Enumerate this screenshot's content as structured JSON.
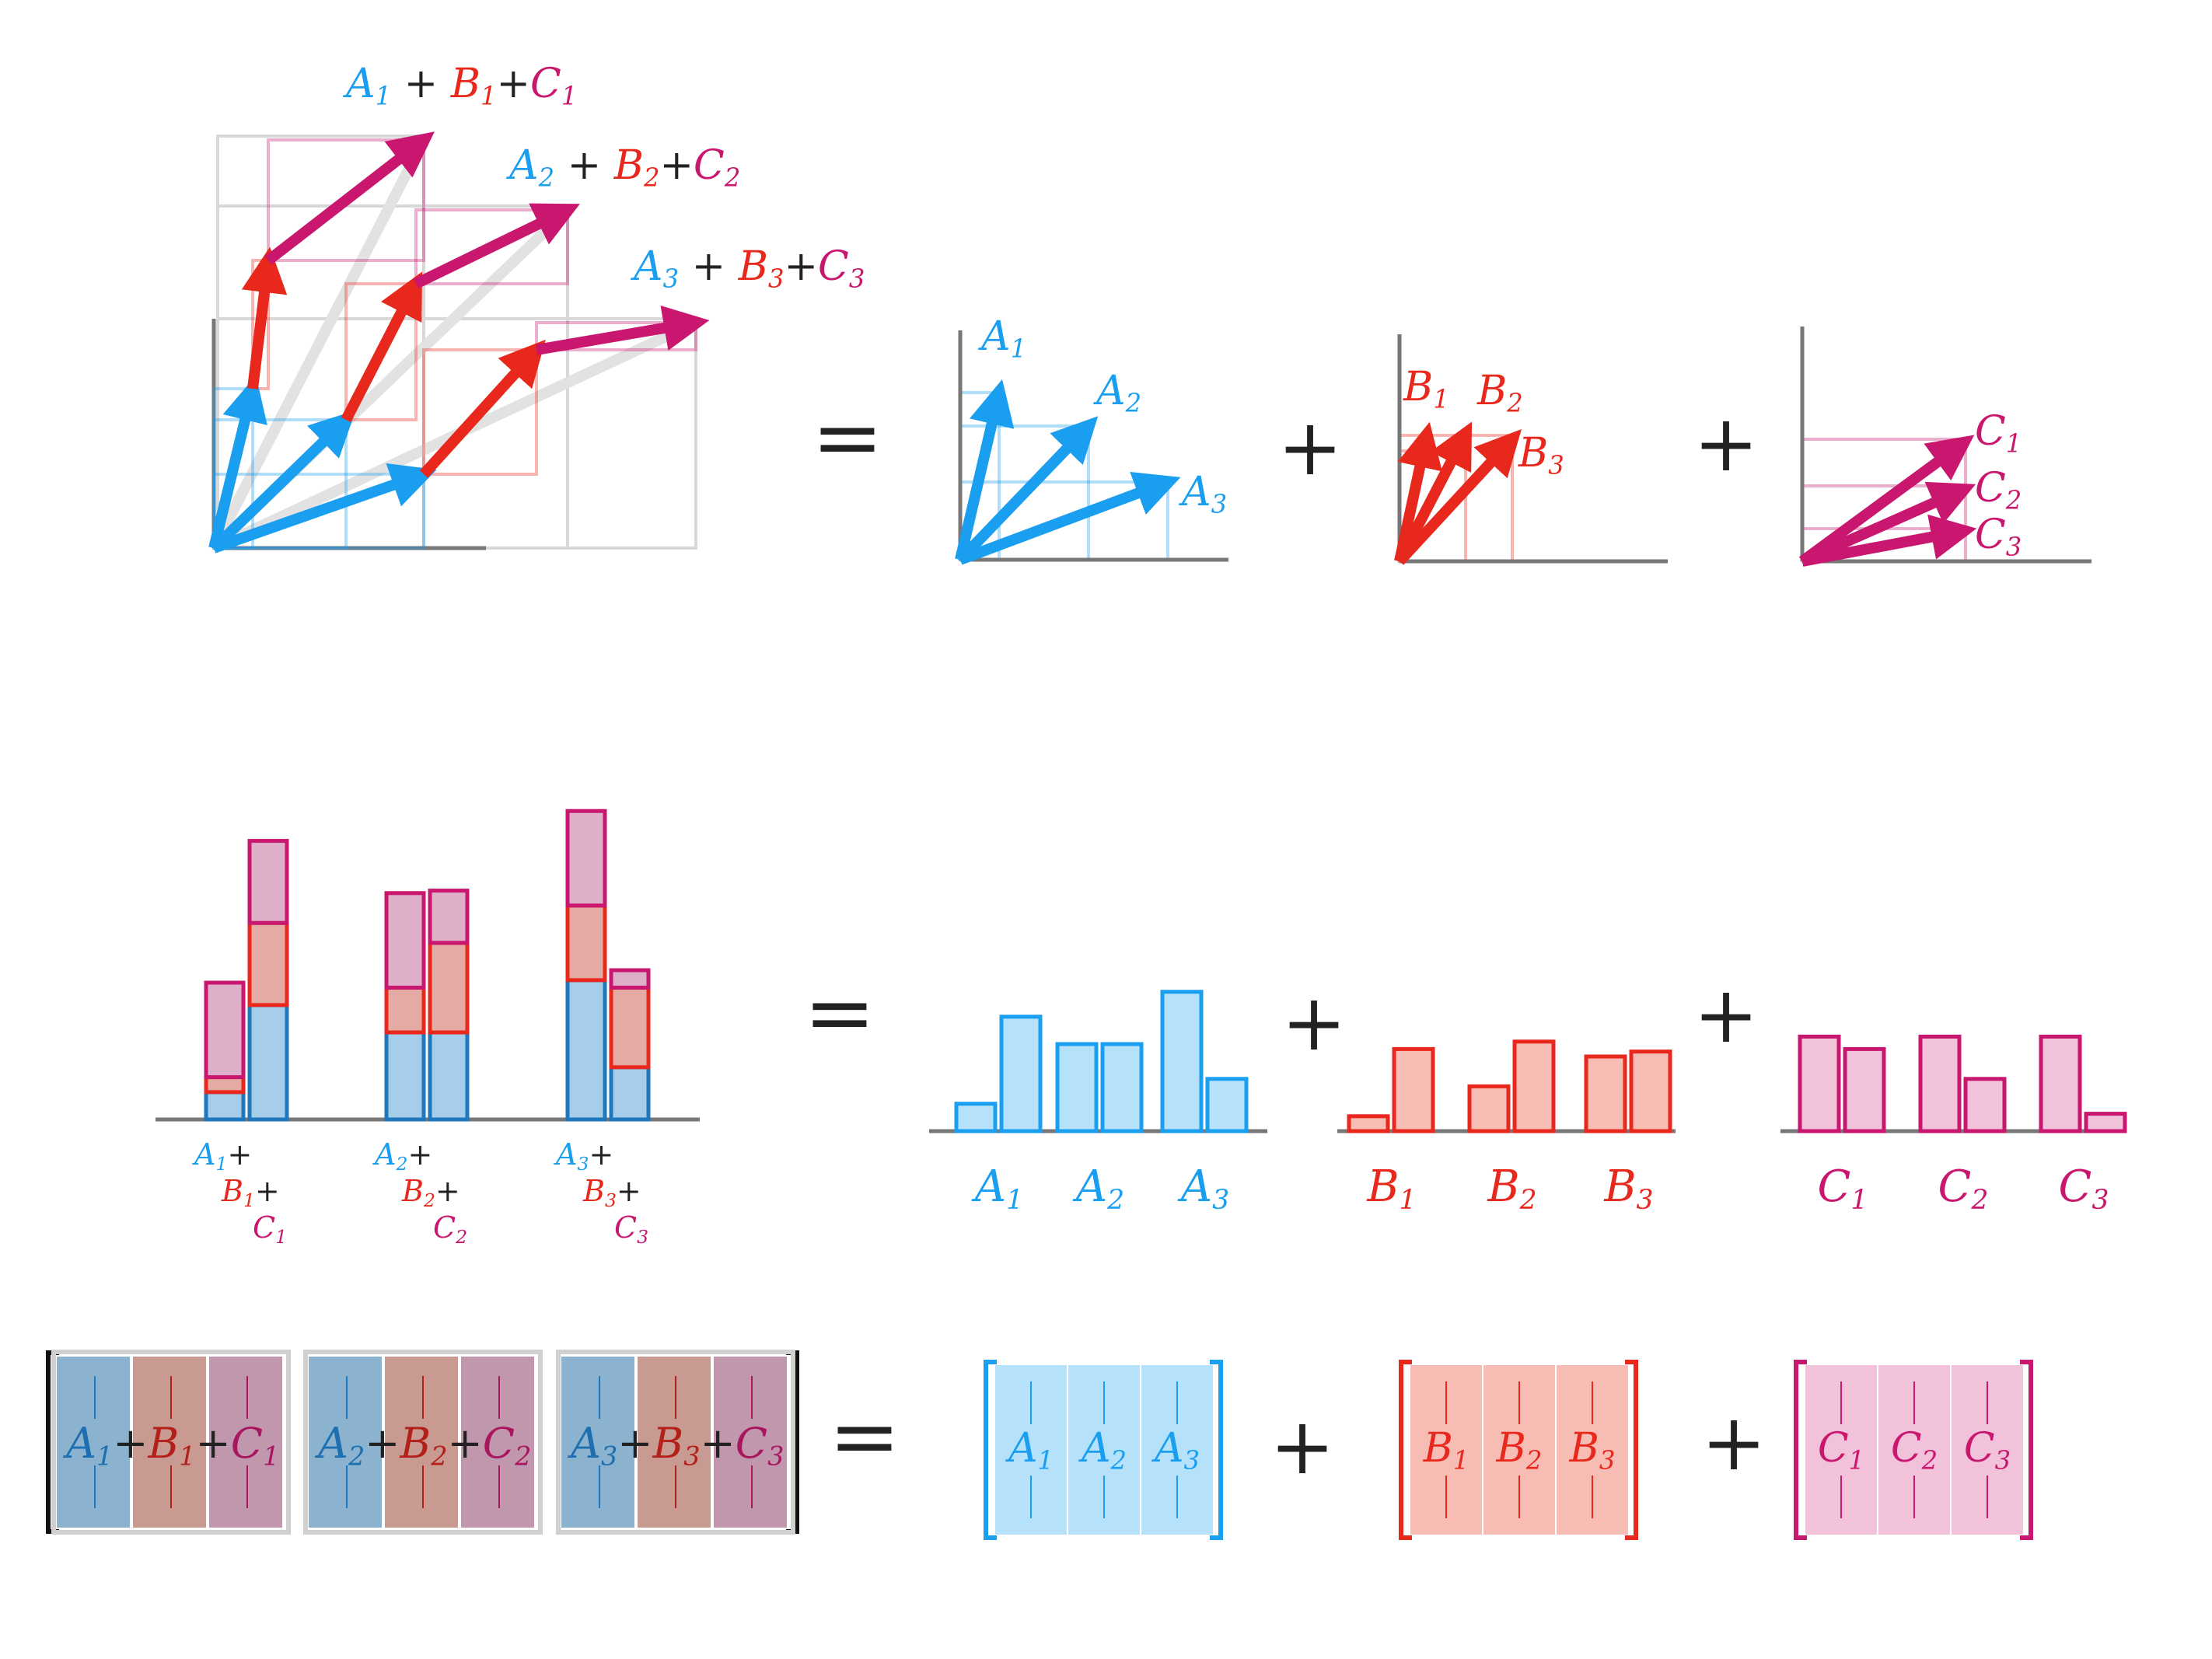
{
  "colors": {
    "a": "#1a9ff0",
    "a_fill": "#b6e1fb",
    "a_dark": "#1f78bd",
    "b": "#e8281c",
    "b_fill": "#f7bdb5",
    "c": "#c9176f",
    "c_fill": "#f2c2da",
    "axis": "#777777",
    "ink": "#222222"
  },
  "operators": {
    "equals": "=",
    "plus": "+"
  },
  "vector_labels": {
    "sum": [
      {
        "a": "A",
        "an": "1",
        "b": "B",
        "bn": "1",
        "c": "C",
        "cn": "1"
      },
      {
        "a": "A",
        "an": "2",
        "b": "B",
        "bn": "2",
        "c": "C",
        "cn": "2"
      },
      {
        "a": "A",
        "an": "3",
        "b": "B",
        "bn": "3",
        "c": "C",
        "cn": "3"
      }
    ],
    "a": [
      {
        "n": "A",
        "s": "1"
      },
      {
        "n": "A",
        "s": "2"
      },
      {
        "n": "A",
        "s": "3"
      }
    ],
    "b": [
      {
        "n": "B",
        "s": "1"
      },
      {
        "n": "B",
        "s": "2"
      },
      {
        "n": "B",
        "s": "3"
      }
    ],
    "c": [
      {
        "n": "C",
        "s": "1"
      },
      {
        "n": "C",
        "s": "2"
      },
      {
        "n": "C",
        "s": "3"
      }
    ]
  },
  "bar_data": {
    "A": [
      [
        1.1,
        4.6
      ],
      [
        3.5,
        3.5
      ],
      [
        5.6,
        2.1
      ]
    ],
    "B": [
      [
        0.6,
        3.3
      ],
      [
        1.8,
        3.6
      ],
      [
        3.0,
        3.2
      ]
    ],
    "C": [
      [
        3.8,
        3.3
      ],
      [
        3.8,
        2.1
      ],
      [
        3.8,
        0.7
      ]
    ]
  },
  "bar_labels": {
    "sum_top": [
      "A",
      "A",
      "A"
    ],
    "sum_mid": [
      "B",
      "B",
      "B"
    ],
    "sum_bot": [
      "C",
      "C",
      "C"
    ],
    "subs": [
      "1",
      "2",
      "3"
    ]
  },
  "matrix": {
    "sum_cols": [
      {
        "a": "A",
        "b": "B",
        "c": "C",
        "s": "1"
      },
      {
        "a": "A",
        "b": "B",
        "c": "C",
        "s": "2"
      },
      {
        "a": "A",
        "b": "B",
        "c": "C",
        "s": "3"
      }
    ],
    "a_cols": [
      {
        "n": "A",
        "s": "1"
      },
      {
        "n": "A",
        "s": "2"
      },
      {
        "n": "A",
        "s": "3"
      }
    ],
    "b_cols": [
      {
        "n": "B",
        "s": "1"
      },
      {
        "n": "B",
        "s": "2"
      },
      {
        "n": "B",
        "s": "3"
      }
    ],
    "c_cols": [
      {
        "n": "C",
        "s": "1"
      },
      {
        "n": "C",
        "s": "2"
      },
      {
        "n": "C",
        "s": "3"
      }
    ]
  }
}
